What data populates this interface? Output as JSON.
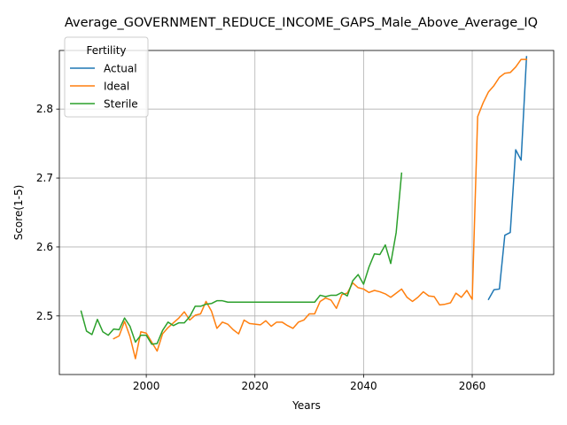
{
  "chart_data": {
    "type": "line",
    "title": "Average_GOVERNMENT_REDUCE_INCOME_GAPS_Male_Above_Average_IQ",
    "xlabel": "Years",
    "ylabel": "Score(1-5)",
    "xlim": [
      1984,
      2075
    ],
    "ylim": [
      2.415,
      2.885
    ],
    "xticks": [
      2000,
      2020,
      2040,
      2060
    ],
    "yticks": [
      2.5,
      2.6,
      2.7,
      2.8
    ],
    "xtick_labels": [
      "2000",
      "2020",
      "2040",
      "2060"
    ],
    "ytick_labels": [
      "2.5",
      "2.6",
      "2.7",
      "2.8"
    ],
    "grid": true,
    "legend": {
      "title": "Fertility",
      "position": "top-left"
    },
    "series": [
      {
        "name": "Actual",
        "color": "#1f77b4",
        "x": [
          2063,
          2064,
          2065,
          2066,
          2067,
          2068,
          2069,
          2070
        ],
        "y": [
          2.524,
          2.538,
          2.539,
          2.617,
          2.621,
          2.741,
          2.726,
          2.876
        ]
      },
      {
        "name": "Ideal",
        "color": "#ff7f0e",
        "x": [
          1994,
          1995,
          1996,
          1997,
          1998,
          1999,
          2000,
          2001,
          2002,
          2003,
          2004,
          2005,
          2006,
          2007,
          2008,
          2009,
          2010,
          2011,
          2012,
          2013,
          2014,
          2015,
          2016,
          2017,
          2018,
          2019,
          2020,
          2021,
          2022,
          2023,
          2024,
          2025,
          2026,
          2027,
          2028,
          2029,
          2030,
          2031,
          2032,
          2033,
          2034,
          2035,
          2036,
          2037,
          2038,
          2039,
          2040,
          2041,
          2042,
          2043,
          2044,
          2045,
          2046,
          2047,
          2048,
          2049,
          2050,
          2051,
          2052,
          2053,
          2054,
          2055,
          2056,
          2057,
          2058,
          2059,
          2060,
          2061,
          2062,
          2063,
          2064,
          2065,
          2066,
          2067,
          2068,
          2069,
          2070
        ],
        "y": [
          2.467,
          2.471,
          2.492,
          2.47,
          2.438,
          2.477,
          2.475,
          2.462,
          2.449,
          2.474,
          2.483,
          2.49,
          2.497,
          2.506,
          2.494,
          2.501,
          2.503,
          2.521,
          2.507,
          2.482,
          2.491,
          2.488,
          2.48,
          2.474,
          2.494,
          2.489,
          2.488,
          2.487,
          2.493,
          2.485,
          2.491,
          2.491,
          2.486,
          2.482,
          2.491,
          2.494,
          2.503,
          2.503,
          2.521,
          2.526,
          2.523,
          2.511,
          2.531,
          2.533,
          2.548,
          2.541,
          2.539,
          2.534,
          2.537,
          2.535,
          2.532,
          2.527,
          2.533,
          2.539,
          2.527,
          2.521,
          2.527,
          2.535,
          2.529,
          2.528,
          2.516,
          2.517,
          2.519,
          2.533,
          2.527,
          2.537,
          2.524,
          2.789,
          2.809,
          2.825,
          2.834,
          2.846,
          2.852,
          2.853,
          2.861,
          2.872,
          2.872
        ]
      },
      {
        "name": "Sterile",
        "color": "#2ca02c",
        "x": [
          1988,
          1989,
          1990,
          1991,
          1992,
          1993,
          1994,
          1995,
          1996,
          1997,
          1998,
          1999,
          2000,
          2001,
          2002,
          2003,
          2004,
          2005,
          2006,
          2007,
          2008,
          2009,
          2010,
          2011,
          2012,
          2013,
          2014,
          2015,
          2016,
          2017,
          2018,
          2019,
          2020,
          2021,
          2022,
          2023,
          2024,
          2025,
          2026,
          2027,
          2028,
          2029,
          2030,
          2031,
          2032,
          2033,
          2034,
          2035,
          2036,
          2037,
          2038,
          2039,
          2040,
          2041,
          2042,
          2043,
          2044,
          2045,
          2046,
          2047
        ],
        "y": [
          2.507,
          2.478,
          2.473,
          2.495,
          2.477,
          2.472,
          2.481,
          2.48,
          2.497,
          2.485,
          2.462,
          2.472,
          2.472,
          2.459,
          2.46,
          2.479,
          2.491,
          2.486,
          2.49,
          2.49,
          2.499,
          2.514,
          2.514,
          2.517,
          2.518,
          2.522,
          2.522,
          2.52,
          2.52,
          2.52,
          2.52,
          2.52,
          2.52,
          2.52,
          2.52,
          2.52,
          2.52,
          2.52,
          2.52,
          2.52,
          2.52,
          2.52,
          2.52,
          2.52,
          2.53,
          2.528,
          2.53,
          2.53,
          2.534,
          2.529,
          2.551,
          2.56,
          2.546,
          2.571,
          2.59,
          2.589,
          2.603,
          2.576,
          2.621,
          2.707
        ]
      }
    ]
  }
}
